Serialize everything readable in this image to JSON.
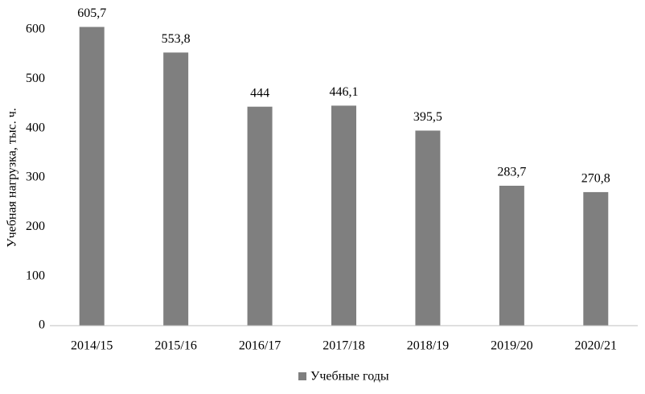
{
  "chart_data": {
    "type": "bar",
    "y_label": "Учебная нагрузка, тыс. ч.",
    "categories": [
      "2014/15",
      "2015/16",
      "2016/17",
      "2017/18",
      "2018/19",
      "2019/20",
      "2020/21"
    ],
    "series": [
      {
        "name": "Учебные годы",
        "color": "#7f7f7f",
        "values": [
          605.7,
          553.8,
          444,
          446.1,
          395.5,
          283.7,
          270.8
        ],
        "value_labels": [
          "605,7",
          "553,8",
          "444",
          "446,1",
          "395,5",
          "283,7",
          "270,8"
        ]
      }
    ],
    "ylim": [
      0,
      600
    ],
    "yticks": [
      0,
      100,
      200,
      300,
      400,
      500,
      600
    ],
    "grid": false
  }
}
